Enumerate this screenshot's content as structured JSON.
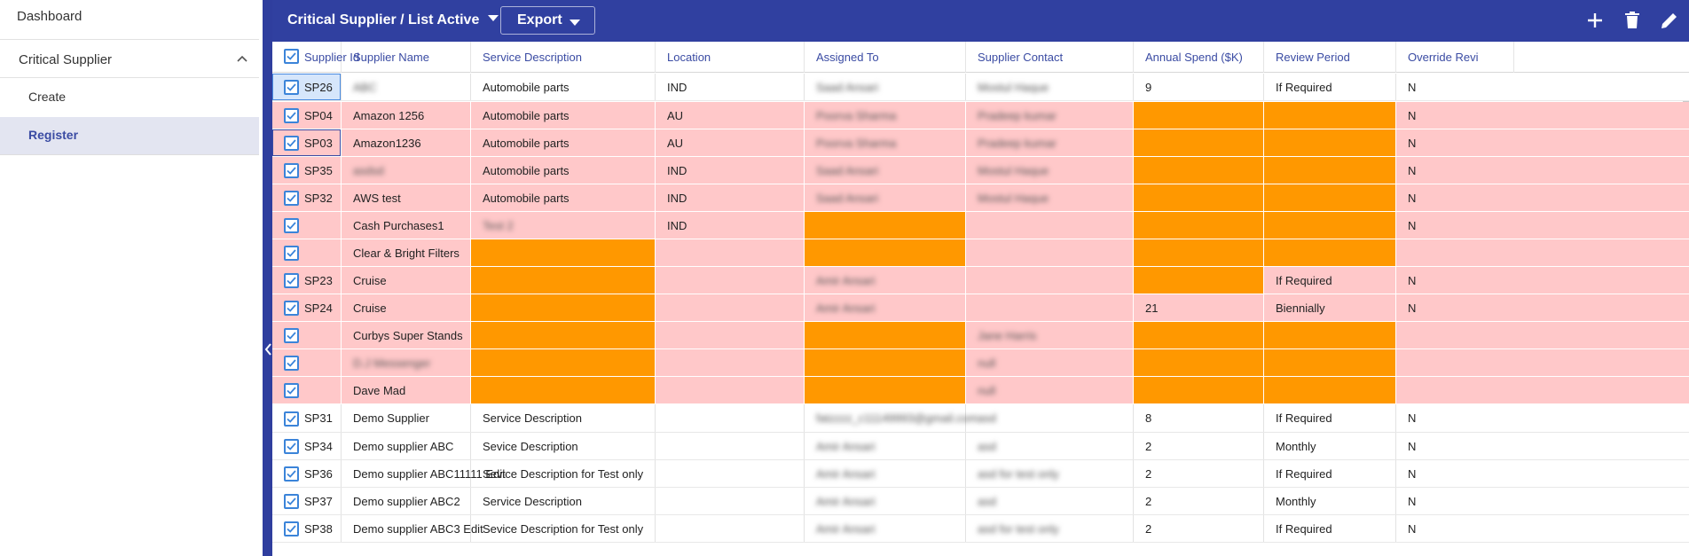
{
  "sidebar": {
    "dashboard": "Dashboard",
    "section": "Critical Supplier",
    "create": "Create",
    "register": "Register"
  },
  "toolbar": {
    "title": "Critical Supplier / List Active",
    "export_label": "Export",
    "icons": [
      "plus-icon",
      "trash-icon",
      "pencil-icon"
    ]
  },
  "colors": {
    "toolbar": "#3040a0",
    "row_highlight": "#ffc8c9",
    "missing_field": "#ff9800",
    "header_text": "#3a4ba3"
  },
  "columns": [
    "Supplier Id",
    "Supplier Name",
    "Service Description",
    "Location",
    "Assigned To",
    "Supplier Contact",
    "Annual Spend ($K)",
    "Review Period",
    "Override Revi"
  ],
  "rows": [
    {
      "state": "white",
      "id": "SP26",
      "name": "ABC",
      "service": "Automobile parts",
      "location": "IND",
      "assigned": "Saad Ansari",
      "contact": "Mostul Haque",
      "spend": "9",
      "review": "If Required",
      "override": "N",
      "blur": [
        "name",
        "assigned",
        "contact"
      ],
      "orange": []
    },
    {
      "state": "pink",
      "id": "SP04",
      "name": "Amazon 1256",
      "service": "Automobile parts",
      "location": "AU",
      "assigned": "Poorva Sharma",
      "contact": "Pradeep kumar",
      "spend": "",
      "review": "",
      "override": "N",
      "blur": [
        "assigned",
        "contact"
      ],
      "orange": [
        "spend",
        "review"
      ]
    },
    {
      "state": "pink",
      "id": "SP03",
      "name": "Amazon1236",
      "service": "Automobile parts",
      "location": "AU",
      "assigned": "Poorva Sharma",
      "contact": "Pradeep kumar",
      "spend": "",
      "review": "",
      "override": "N",
      "blur": [
        "assigned",
        "contact"
      ],
      "orange": [
        "spend",
        "review"
      ]
    },
    {
      "state": "pink",
      "id": "SP35",
      "name": "asdsd",
      "service": "Automobile parts",
      "location": "IND",
      "assigned": "Saad Ansari",
      "contact": "Mostul Haque",
      "spend": "",
      "review": "",
      "override": "N",
      "blur": [
        "name",
        "assigned",
        "contact"
      ],
      "orange": [
        "spend",
        "review"
      ]
    },
    {
      "state": "pink",
      "id": "SP32",
      "name": "AWS test",
      "service": "Automobile parts",
      "location": "IND",
      "assigned": "Saad Ansari",
      "contact": "Mostul Haque",
      "spend": "",
      "review": "",
      "override": "N",
      "blur": [
        "assigned",
        "contact"
      ],
      "orange": [
        "spend",
        "review"
      ]
    },
    {
      "state": "pink",
      "id": "",
      "name": "Cash Purchases1",
      "service": "Test 2",
      "location": "IND",
      "assigned": "",
      "contact": "",
      "spend": "",
      "review": "",
      "override": "N",
      "blur": [
        "service"
      ],
      "orange": [
        "assigned",
        "spend",
        "review"
      ]
    },
    {
      "state": "pink",
      "id": "",
      "name": "Clear & Bright Filters",
      "service": "",
      "location": "",
      "assigned": "",
      "contact": "",
      "spend": "",
      "review": "",
      "override": "",
      "blur": [],
      "orange": [
        "service",
        "assigned",
        "spend",
        "review"
      ]
    },
    {
      "state": "pink",
      "id": "SP23",
      "name": "Cruise",
      "service": "",
      "location": "",
      "assigned": "Amir Ansari",
      "contact": "",
      "spend": "",
      "review": "If Required",
      "override": "N",
      "blur": [
        "assigned"
      ],
      "orange": [
        "service",
        "spend"
      ]
    },
    {
      "state": "pink",
      "id": "SP24",
      "name": "Cruise",
      "service": "",
      "location": "",
      "assigned": "Amir Ansari",
      "contact": "",
      "spend": "21",
      "review": "Biennially",
      "override": "N",
      "blur": [
        "assigned"
      ],
      "orange": [
        "service"
      ]
    },
    {
      "state": "pink",
      "id": "",
      "name": "Curbys Super Stands",
      "service": "",
      "location": "",
      "assigned": "",
      "contact": "Jane Harris",
      "spend": "",
      "review": "",
      "override": "",
      "blur": [
        "contact"
      ],
      "orange": [
        "service",
        "assigned",
        "spend",
        "review"
      ]
    },
    {
      "state": "pink",
      "id": "",
      "name": "D.J Messenger",
      "service": "",
      "location": "",
      "assigned": "",
      "contact": "null",
      "spend": "",
      "review": "",
      "override": "",
      "blur": [
        "name",
        "contact"
      ],
      "orange": [
        "service",
        "assigned",
        "spend",
        "review"
      ]
    },
    {
      "state": "pink",
      "id": "",
      "name": "Dave Mad",
      "service": "",
      "location": "",
      "assigned": "",
      "contact": "null",
      "spend": "",
      "review": "",
      "override": "",
      "blur": [
        "contact"
      ],
      "orange": [
        "service",
        "assigned",
        "spend",
        "review"
      ]
    },
    {
      "state": "white",
      "id": "SP31",
      "name": "Demo Supplier",
      "service": "Service Description",
      "location": "",
      "assigned": "fatzzzz_c11149993@gmail.com",
      "contact": "asd",
      "spend": "8",
      "review": "If Required",
      "override": "N",
      "blur": [
        "assigned",
        "contact"
      ],
      "orange": []
    },
    {
      "state": "white",
      "id": "SP34",
      "name": "Demo supplier ABC",
      "service": "Sevice Description",
      "location": "",
      "assigned": "Amir Ansari",
      "contact": "asd",
      "spend": "2",
      "review": "Monthly",
      "override": "N",
      "blur": [
        "assigned",
        "contact"
      ],
      "orange": []
    },
    {
      "state": "white",
      "id": "SP36",
      "name": "Demo supplier ABC11111 Edit",
      "service": "Sevice Description for Test only",
      "location": "",
      "assigned": "Amir Ansari",
      "contact": "asd for test only",
      "spend": "2",
      "review": "If Required",
      "override": "N",
      "blur": [
        "assigned",
        "contact"
      ],
      "orange": []
    },
    {
      "state": "white",
      "id": "SP37",
      "name": "Demo supplier ABC2",
      "service": "Service Description",
      "location": "",
      "assigned": "Amir Ansari",
      "contact": "asd",
      "spend": "2",
      "review": "Monthly",
      "override": "N",
      "blur": [
        "assigned",
        "contact"
      ],
      "orange": []
    },
    {
      "state": "white",
      "id": "SP38",
      "name": "Demo supplier ABC3 Edit",
      "service": "Sevice Description for Test only",
      "location": "",
      "assigned": "Amir Ansari",
      "contact": "asd for test only",
      "spend": "2",
      "review": "If Required",
      "override": "N",
      "blur": [
        "assigned",
        "contact"
      ],
      "orange": []
    }
  ]
}
